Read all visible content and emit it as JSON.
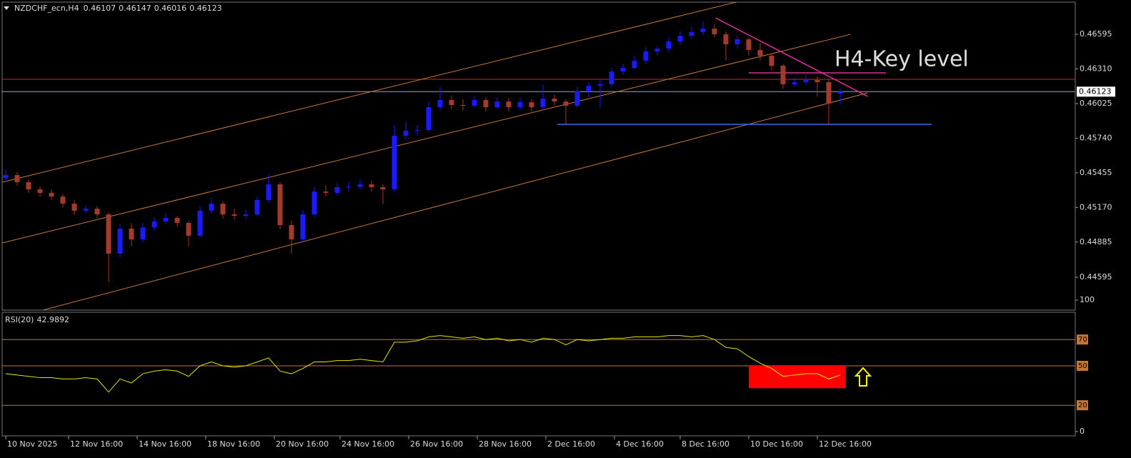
{
  "chart_data": [
    {
      "type": "candlestick",
      "title": "NZDCHF_ecn,H4",
      "up_color": "#1a1aff",
      "down_color": "#a33a2c",
      "ohlc": [
        [
          0.4541,
          0.4548,
          0.4538,
          0.45437
        ],
        [
          0.45437,
          0.4546,
          0.4535,
          0.45378
        ],
        [
          0.45378,
          0.454,
          0.4529,
          0.45319
        ],
        [
          0.45319,
          0.4534,
          0.4526,
          0.4529
        ],
        [
          0.4529,
          0.4532,
          0.4523,
          0.4526
        ],
        [
          0.4526,
          0.4528,
          0.4517,
          0.45201
        ],
        [
          0.45201,
          0.4523,
          0.4511,
          0.45143
        ],
        [
          0.45143,
          0.4519,
          0.4512,
          0.4516
        ],
        [
          0.4516,
          0.4518,
          0.4508,
          0.45113
        ],
        [
          0.45113,
          0.4513,
          0.44555,
          0.4479
        ],
        [
          0.4479,
          0.4503,
          0.4476,
          0.44996
        ],
        [
          0.44996,
          0.4504,
          0.4485,
          0.44907
        ],
        [
          0.44907,
          0.4504,
          0.4488,
          0.45005
        ],
        [
          0.45005,
          0.4509,
          0.4498,
          0.45054
        ],
        [
          0.45054,
          0.4512,
          0.4503,
          0.45084
        ],
        [
          0.45084,
          0.451,
          0.4501,
          0.45043
        ],
        [
          0.45043,
          0.4506,
          0.4485,
          0.44937
        ],
        [
          0.44937,
          0.4518,
          0.4492,
          0.45143
        ],
        [
          0.45143,
          0.4525,
          0.4512,
          0.45201
        ],
        [
          0.45201,
          0.4522,
          0.4508,
          0.45113
        ],
        [
          0.45113,
          0.4516,
          0.4507,
          0.45101
        ],
        [
          0.45101,
          0.4515,
          0.4508,
          0.45113
        ],
        [
          0.45113,
          0.4526,
          0.451,
          0.45231
        ],
        [
          0.45231,
          0.4544,
          0.4521,
          0.4536
        ],
        [
          0.4536,
          0.4538,
          0.4499,
          0.45025
        ],
        [
          0.45025,
          0.4506,
          0.4479,
          0.44907
        ],
        [
          0.44907,
          0.4515,
          0.4488,
          0.45113
        ],
        [
          0.45113,
          0.4534,
          0.4509,
          0.45301
        ],
        [
          0.45301,
          0.4535,
          0.4526,
          0.4529
        ],
        [
          0.4529,
          0.4537,
          0.4527,
          0.45337
        ],
        [
          0.45337,
          0.4538,
          0.453,
          0.4534
        ],
        [
          0.4534,
          0.454,
          0.4532,
          0.4536
        ],
        [
          0.4536,
          0.4539,
          0.453,
          0.45337
        ],
        [
          0.45337,
          0.4536,
          0.452,
          0.45319
        ],
        [
          0.45319,
          0.4585,
          0.453,
          0.4576
        ],
        [
          0.4576,
          0.4588,
          0.4572,
          0.45801
        ],
        [
          0.45801,
          0.4585,
          0.4576,
          0.45807
        ],
        [
          0.45807,
          0.4604,
          0.4579,
          0.45995
        ],
        [
          0.45995,
          0.4616,
          0.4597,
          0.46054
        ],
        [
          0.46054,
          0.4609,
          0.4598,
          0.46013
        ],
        [
          0.46013,
          0.4606,
          0.4597,
          0.46007
        ],
        [
          0.46007,
          0.4609,
          0.4599,
          0.46054
        ],
        [
          0.46054,
          0.4608,
          0.4596,
          0.45995
        ],
        [
          0.45995,
          0.4608,
          0.4598,
          0.46042
        ],
        [
          0.46042,
          0.4607,
          0.4596,
          0.45995
        ],
        [
          0.45995,
          0.4607,
          0.4597,
          0.46036
        ],
        [
          0.46036,
          0.4606,
          0.4596,
          0.45995
        ],
        [
          0.45995,
          0.4618,
          0.4598,
          0.46066
        ],
        [
          0.46066,
          0.461,
          0.4601,
          0.46042
        ],
        [
          0.46042,
          0.4606,
          0.4585,
          0.46007
        ],
        [
          0.46007,
          0.4616,
          0.4599,
          0.46125
        ],
        [
          0.46125,
          0.462,
          0.4608,
          0.46172
        ],
        [
          0.46172,
          0.4622,
          0.4599,
          0.46184
        ],
        [
          0.46184,
          0.4632,
          0.4616,
          0.46289
        ],
        [
          0.46289,
          0.4635,
          0.4626,
          0.46319
        ],
        [
          0.46319,
          0.4642,
          0.463,
          0.46378
        ],
        [
          0.46378,
          0.4649,
          0.4635,
          0.46454
        ],
        [
          0.46454,
          0.465,
          0.4642,
          0.46477
        ],
        [
          0.46477,
          0.4657,
          0.4645,
          0.46536
        ],
        [
          0.46536,
          0.4662,
          0.4651,
          0.46583
        ],
        [
          0.46583,
          0.4666,
          0.4656,
          0.46613
        ],
        [
          0.46613,
          0.467,
          0.4659,
          0.46642
        ],
        [
          0.46642,
          0.4668,
          0.4657,
          0.46595
        ],
        [
          0.46595,
          0.4662,
          0.4638,
          0.46513
        ],
        [
          0.46513,
          0.4658,
          0.4648,
          0.46554
        ],
        [
          0.46554,
          0.4657,
          0.4642,
          0.46466
        ],
        [
          0.46466,
          0.4652,
          0.4638,
          0.46419
        ],
        [
          0.46419,
          0.4644,
          0.463,
          0.46336
        ],
        [
          0.46336,
          0.4635,
          0.4615,
          0.46184
        ],
        [
          0.46184,
          0.4624,
          0.4616,
          0.46201
        ],
        [
          0.46201,
          0.4626,
          0.4618,
          0.46219
        ],
        [
          0.46219,
          0.4625,
          0.4608,
          0.46201
        ],
        [
          0.46201,
          0.4623,
          0.4585,
          0.46025
        ],
        [
          0.46107,
          0.46147,
          0.46016,
          0.46123
        ]
      ],
      "ylim": [
        0.44325,
        0.4686
      ],
      "yticks": [
        0.46595,
        {
          "value": 0.4631,
          "label": "0.46310"
        },
        0.46025,
        {
          "value": 0.4574,
          "label": "0.45740"
        },
        0.45455,
        {
          "value": 0.4517,
          "label": "0.45170"
        },
        0.44885,
        0.44595
      ],
      "xticks": [
        {
          "value": 0,
          "label": "10 Nov 2025"
        },
        {
          "value": 5.5,
          "label": "12 Nov 16:00"
        },
        {
          "value": 11.5,
          "label": "14 Nov 16:00"
        },
        {
          "value": 17.5,
          "label": "18 Nov 16:00"
        },
        {
          "value": 23.5,
          "label": "20 Nov 16:00"
        },
        {
          "value": 29.25,
          "label": "24 Nov 16:00"
        },
        {
          "value": 35.25,
          "label": "26 Nov 16:00"
        },
        {
          "value": 41.25,
          "label": "28 Nov 16:00"
        },
        {
          "value": 47.25,
          "label": "2 Dec 16:00"
        },
        {
          "value": 53.25,
          "label": "4 Dec 16:00"
        },
        {
          "value": 59,
          "label": "8 Dec 16:00"
        },
        {
          "value": 65,
          "label": "10 Dec 16:00"
        },
        {
          "value": 71,
          "label": "12 Dec 16:00"
        }
      ],
      "hlines": [
        {
          "value": 0.46225,
          "color": "#b8322a",
          "tag": false
        },
        {
          "value": 0.46123,
          "color": "#8fa8c8",
          "tag": true
        }
      ],
      "segments": [
        {
          "x": [
            -0.3,
            63.9
          ],
          "y": [
            0.45378,
            0.4686
          ],
          "color": "#c8783a"
        },
        {
          "x": [
            -0.3,
            73.9
          ],
          "y": [
            0.44878,
            0.46595
          ],
          "color": "#c8783a"
        },
        {
          "x": [
            3.25,
            75.4
          ],
          "y": [
            0.44325,
            0.46113
          ],
          "color": "#c8783a"
        },
        {
          "x": [
            62.1,
            75.4
          ],
          "y": [
            0.4673,
            0.46084
          ],
          "color": "#e0309a"
        },
        {
          "x": [
            65,
            77
          ],
          "y": [
            0.46278,
            0.46278
          ],
          "color": "#e0309a"
        },
        {
          "x": [
            48.25,
            81
          ],
          "y": [
            0.45854,
            0.45854
          ],
          "color": "#3a6ee8"
        }
      ],
      "annotation": {
        "text": "H4-Key level",
        "color": "#d8208c"
      }
    },
    {
      "type": "line",
      "series": [
        {
          "name": "RSI(20)",
          "color": "#e6e600",
          "values": [
            44,
            43,
            42,
            41,
            41,
            40,
            40,
            41,
            40,
            30,
            40,
            37,
            44,
            46,
            47,
            46,
            42,
            50,
            53,
            50,
            49,
            50,
            53,
            56,
            46,
            44,
            48,
            53,
            53,
            54,
            54,
            55,
            54,
            53,
            68,
            68,
            69,
            72,
            73,
            72,
            71,
            72,
            70,
            71,
            69,
            70,
            68,
            71,
            70,
            66,
            70,
            69,
            70,
            71,
            71,
            72,
            72,
            72,
            73,
            73,
            72,
            73,
            70,
            64,
            63,
            57,
            52,
            48,
            42,
            43,
            44,
            44,
            40,
            42.9892
          ]
        }
      ],
      "ylim": [
        0,
        100
      ],
      "yticks": [
        100,
        0
      ],
      "levels": [
        70,
        50,
        20
      ],
      "level_color": "#c87533",
      "highlight": {
        "x": [
          65,
          73.5
        ],
        "y": [
          50,
          33
        ],
        "color": "#ff0000"
      }
    }
  ]
}
